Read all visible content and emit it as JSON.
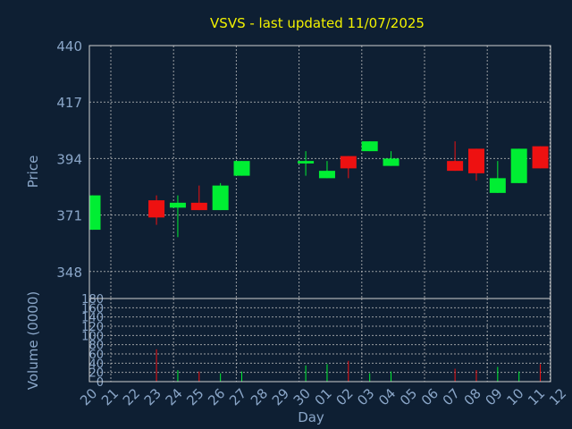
{
  "colors": {
    "background": "#0e1f33",
    "up": "#00ee33",
    "down": "#ee1111",
    "title": "#f2f200",
    "tick": "#8aa6c8",
    "grid": "#c8c8c8"
  },
  "chart_data": {
    "type": "candlestick",
    "title": "VSVS - last updated 11/07/2025",
    "xlabel": "Day",
    "ylabel": "Price",
    "volume_label": "Volume (0000)",
    "ylim": [
      337,
      440
    ],
    "yticks": [
      440,
      417,
      394,
      371,
      348
    ],
    "volume_ylim": [
      0,
      180
    ],
    "volume_ticks": [
      180,
      160,
      140,
      120,
      100,
      80,
      60,
      40,
      20,
      0
    ],
    "grid": true,
    "x_ticks": [
      "20",
      "21",
      "22",
      "23",
      "24",
      "25",
      "26",
      "27",
      "28",
      "29",
      "30",
      "01",
      "02",
      "03",
      "04",
      "05",
      "06",
      "07",
      "08",
      "09",
      "10",
      "11",
      "12"
    ],
    "candles": [
      {
        "day": "20",
        "open": 365,
        "close": 379,
        "high": 379,
        "low": 365,
        "volume": 0
      },
      {
        "day": "23",
        "open": 377,
        "close": 370,
        "high": 379,
        "low": 367,
        "volume": 70
      },
      {
        "day": "24",
        "open": 374,
        "close": 376,
        "high": 379,
        "low": 362,
        "volume": 25
      },
      {
        "day": "25",
        "open": 376,
        "close": 373,
        "high": 383,
        "low": 373,
        "volume": 22
      },
      {
        "day": "26",
        "open": 373,
        "close": 383,
        "high": 384,
        "low": 373,
        "volume": 18
      },
      {
        "day": "27",
        "open": 387,
        "close": 393,
        "high": 393,
        "low": 387,
        "volume": 22
      },
      {
        "day": "30",
        "open": 392,
        "close": 393,
        "high": 397,
        "low": 387,
        "volume": 35
      },
      {
        "day": "01",
        "open": 386,
        "close": 389,
        "high": 393,
        "low": 386,
        "volume": 38
      },
      {
        "day": "02",
        "open": 395,
        "close": 390,
        "high": 395,
        "low": 386,
        "volume": 45
      },
      {
        "day": "03",
        "open": 397,
        "close": 401,
        "high": 401,
        "low": 397,
        "volume": 18
      },
      {
        "day": "04",
        "open": 391,
        "close": 394,
        "high": 397,
        "low": 391,
        "volume": 22
      },
      {
        "day": "07",
        "open": 393,
        "close": 389,
        "high": 401,
        "low": 389,
        "volume": 28
      },
      {
        "day": "08",
        "open": 398,
        "close": 388,
        "high": 398,
        "low": 385,
        "volume": 25
      },
      {
        "day": "09",
        "open": 380,
        "close": 386,
        "high": 393,
        "low": 380,
        "volume": 32
      },
      {
        "day": "10",
        "open": 384,
        "close": 398,
        "high": 398,
        "low": 384,
        "volume": 22
      },
      {
        "day": "11",
        "open": 399,
        "close": 390,
        "high": 399,
        "low": 390,
        "volume": 38
      }
    ]
  }
}
